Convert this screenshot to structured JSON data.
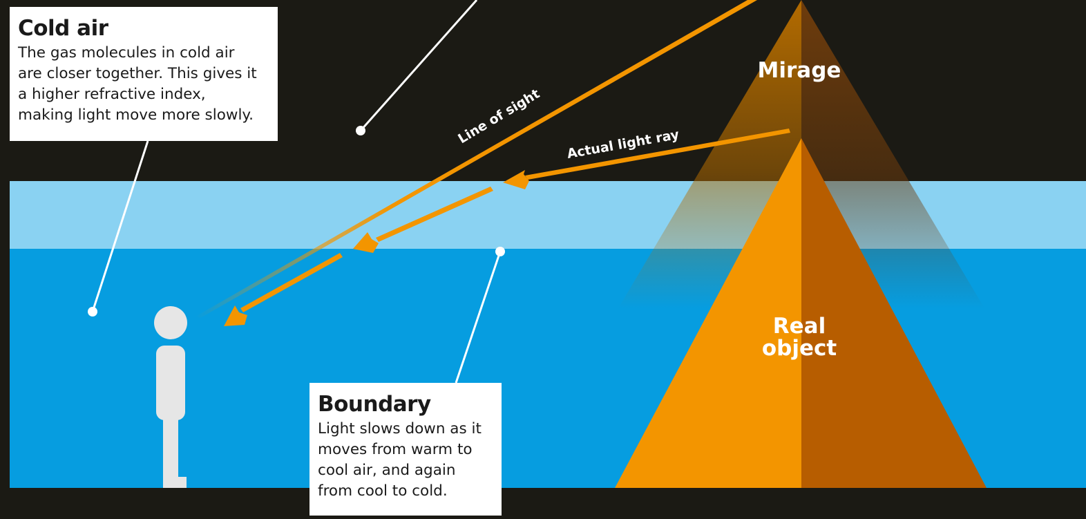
{
  "labels": {
    "mirage": "Mirage",
    "real_object_line1": "Real",
    "real_object_line2": "object",
    "line_of_sight": "Line of sight",
    "actual_light_ray": "Actual light ray"
  },
  "callouts": {
    "cold_air": {
      "title": "Cold air",
      "body": "The gas molecules in cold air\nare closer together. This gives it\na higher refractive index,\nmaking light move more slowly."
    },
    "boundary": {
      "title": "Boundary",
      "body": "Light slows down as it\nmoves from warm to\ncool air, and again\nfrom cool to cold."
    }
  },
  "colors": {
    "background": "#1b1a14",
    "cool_air_band": "#8ad2f2",
    "cold_air_layer": "#069de0",
    "object_light": "#f39500",
    "object_dark": "#b75d00",
    "arrow": "#f39500",
    "person": "#e6e6e6"
  }
}
